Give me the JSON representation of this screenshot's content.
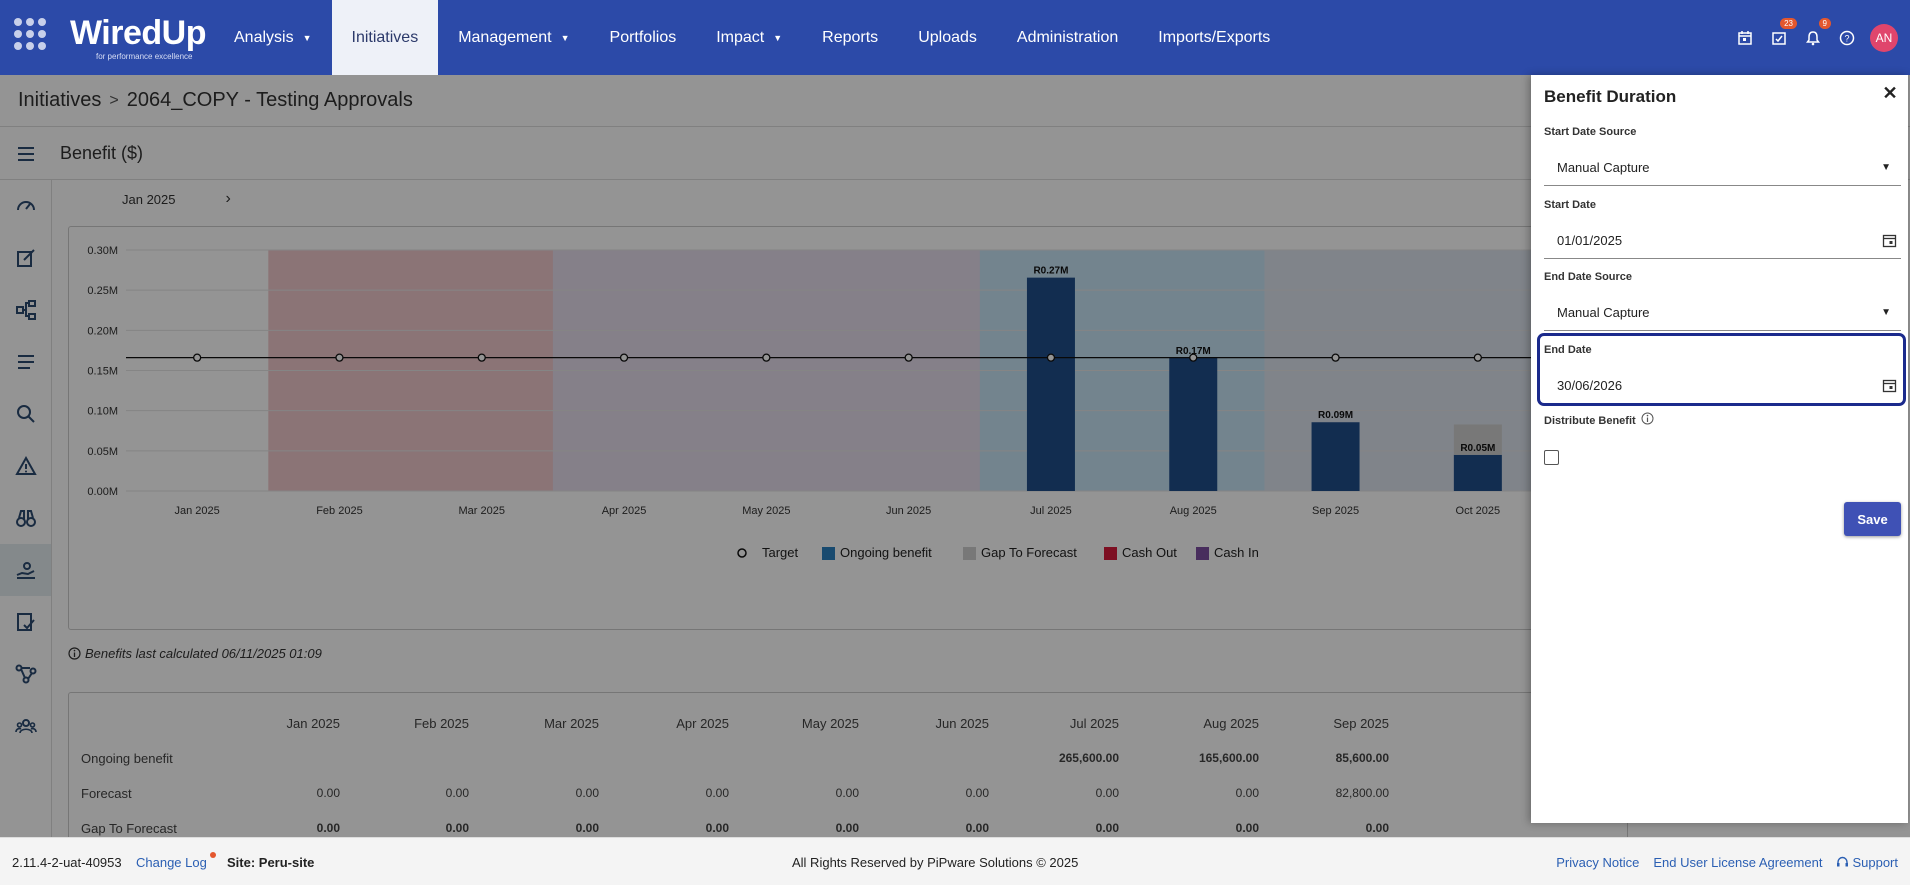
{
  "brand": {
    "name": "WiredUp",
    "tagline": "for performance excellence"
  },
  "nav": {
    "items": [
      {
        "label": "Analysis",
        "caret": true
      },
      {
        "label": "Initiatives",
        "active": true
      },
      {
        "label": "Management",
        "caret": true
      },
      {
        "label": "Portfolios"
      },
      {
        "label": "Impact",
        "caret": true
      },
      {
        "label": "Reports"
      },
      {
        "label": "Uploads"
      },
      {
        "label": "Administration"
      },
      {
        "label": "Imports/Exports"
      }
    ],
    "tasks_badge": "23",
    "notifications_badge": "9",
    "avatar": "AN"
  },
  "breadcrumb": {
    "root": "Initiatives",
    "current": "2064_COPY - Testing Approvals"
  },
  "subheader": {
    "title": "Benefit ($)"
  },
  "period": {
    "label": "Jan 2025",
    "next": "›"
  },
  "chart_data": {
    "type": "bar",
    "categories": [
      "Jan 2025",
      "Feb 2025",
      "Mar 2025",
      "Apr 2025",
      "May 2025",
      "Jun 2025",
      "Jul 2025",
      "Aug 2025",
      "Sep 2025",
      "Oct 2025"
    ],
    "ylim": [
      0,
      0.3
    ],
    "yticks": [
      "0.00M",
      "0.05M",
      "0.10M",
      "0.15M",
      "0.20M",
      "0.25M",
      "0.30M"
    ],
    "series": [
      {
        "name": "Ongoing benefit",
        "color": "#1f4e8a",
        "values": [
          0,
          0,
          0,
          0,
          0,
          0,
          0.2656,
          0.1656,
          0.0856,
          0.045
        ]
      },
      {
        "name": "Gap To Forecast",
        "color": "#cfcfcf",
        "values": [
          0,
          0,
          0,
          0,
          0,
          0,
          0,
          0,
          0,
          0.0378
        ]
      },
      {
        "name": "Target",
        "type": "line",
        "color": "#111111",
        "values": [
          0.166,
          0.166,
          0.166,
          0.166,
          0.166,
          0.166,
          0.166,
          0.166,
          0.166,
          0.166
        ]
      }
    ],
    "bar_labels": [
      "",
      "",
      "",
      "",
      "",
      "",
      "R0.27M",
      "R0.17M",
      "R0.09M",
      "R0.05M"
    ],
    "legend": [
      {
        "name": "Target",
        "color": "#111111",
        "marker": "circle"
      },
      {
        "name": "Ongoing benefit",
        "color": "#2a80c0"
      },
      {
        "name": "Gap To Forecast",
        "color": "#cfcfcf"
      },
      {
        "name": "Cash Out",
        "color": "#d81b3c"
      },
      {
        "name": "Cash In",
        "color": "#7c4fa0"
      }
    ]
  },
  "calc_note": "Benefits last calculated 06/11/2025 01:09",
  "table": {
    "columns": [
      "Jan 2025",
      "Feb 2025",
      "Mar 2025",
      "Apr 2025",
      "May 2025",
      "Jun 2025",
      "Jul 2025",
      "Aug 2025",
      "Sep 2025"
    ],
    "rows": [
      {
        "label": "Ongoing benefit",
        "bold": true,
        "values": [
          "",
          "",
          "",
          "",
          "",
          "",
          "265,600.00",
          "165,600.00",
          "85,600.00"
        ]
      },
      {
        "label": "Forecast",
        "bold": false,
        "values": [
          "0.00",
          "0.00",
          "0.00",
          "0.00",
          "0.00",
          "0.00",
          "0.00",
          "0.00",
          "82,800.00"
        ]
      },
      {
        "label": "Gap To Forecast",
        "bold": true,
        "values": [
          "0.00",
          "0.00",
          "0.00",
          "0.00",
          "0.00",
          "0.00",
          "0.00",
          "0.00",
          "0.00"
        ]
      }
    ]
  },
  "panel": {
    "title": "Benefit Duration",
    "start_source_label": "Start Date Source",
    "start_source_value": "Manual Capture",
    "start_date_label": "Start Date",
    "start_date_value": "01/01/2025",
    "end_source_label": "End Date Source",
    "end_source_value": "Manual Capture",
    "end_date_label": "End Date",
    "end_date_value": "30/06/2026",
    "distribute_label": "Distribute Benefit",
    "save_label": "Save"
  },
  "footer": {
    "version": "2.11.4-2-uat-40953",
    "changelog": "Change Log",
    "site": "Site: Peru-site",
    "rights": "All Rights Reserved by PiPware Solutions © 2025",
    "privacy": "Privacy Notice",
    "eula": "End User License Agreement",
    "support": "Support"
  }
}
